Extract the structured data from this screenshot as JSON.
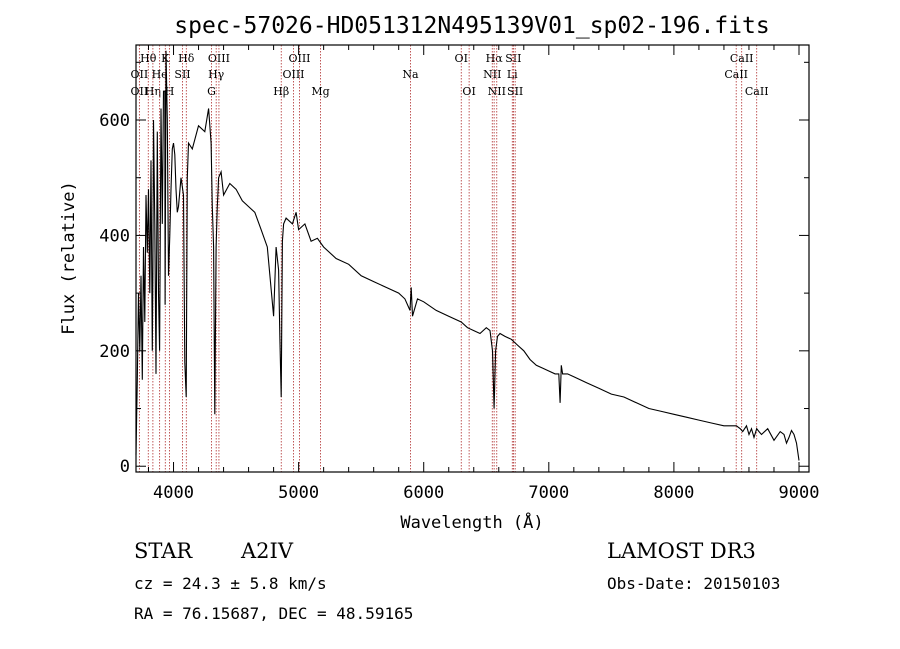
{
  "chart_data": {
    "type": "line",
    "title": "spec-57026-HD051312N495139V01_sp02-196.fits",
    "xlabel": "Wavelength (Å)",
    "ylabel": "Flux (relative)",
    "xlim": [
      3700,
      9080
    ],
    "ylim": [
      -10,
      730
    ],
    "x_ticks": [
      "4000",
      "5000",
      "6000",
      "7000",
      "8000",
      "9000"
    ],
    "y_ticks": [
      "0",
      "200",
      "400",
      "600"
    ],
    "grid": false,
    "series": [
      {
        "x": [
          3700,
          3710,
          3720,
          3730,
          3740,
          3750,
          3760,
          3770,
          3780,
          3790,
          3800,
          3810,
          3820,
          3830,
          3835,
          3840,
          3850,
          3860,
          3870,
          3880,
          3889,
          3900,
          3910,
          3920,
          3930,
          3933,
          3940,
          3950,
          3960,
          3970,
          3980,
          3990,
          4000,
          4010,
          4020,
          4030,
          4040,
          4060,
          4080,
          4090,
          4101,
          4110,
          4120,
          4150,
          4200,
          4250,
          4280,
          4300,
          4310,
          4320,
          4330,
          4340,
          4350,
          4360,
          4380,
          4400,
          4450,
          4500,
          4550,
          4600,
          4650,
          4700,
          4750,
          4800,
          4820,
          4840,
          4850,
          4861,
          4870,
          4880,
          4900,
          4950,
          4980,
          5000,
          5050,
          5100,
          5150,
          5200,
          5300,
          5400,
          5500,
          5600,
          5700,
          5800,
          5850,
          5890,
          5900,
          5910,
          5950,
          6000,
          6100,
          6200,
          6300,
          6350,
          6400,
          6450,
          6500,
          6530,
          6550,
          6563,
          6575,
          6590,
          6610,
          6650,
          6700,
          6750,
          6800,
          6850,
          6900,
          6950,
          7000,
          7050,
          7080,
          7090,
          7100,
          7110,
          7150,
          7200,
          7300,
          7400,
          7500,
          7600,
          7700,
          7800,
          7900,
          8000,
          8100,
          8200,
          8300,
          8400,
          8450,
          8500,
          8530,
          8550,
          8580,
          8600,
          8620,
          8640,
          8662,
          8680,
          8700,
          8750,
          8800,
          8850,
          8880,
          8900,
          8920,
          8940,
          8960,
          8980,
          9000
        ],
        "values": [
          20,
          150,
          300,
          200,
          330,
          150,
          380,
          250,
          470,
          370,
          480,
          300,
          530,
          200,
          340,
          600,
          420,
          160,
          580,
          300,
          200,
          620,
          420,
          650,
          650,
          280,
          720,
          600,
          330,
          400,
          480,
          550,
          560,
          540,
          480,
          440,
          450,
          500,
          470,
          180,
          120,
          500,
          560,
          550,
          590,
          580,
          620,
          560,
          450,
          380,
          90,
          380,
          450,
          500,
          510,
          470,
          490,
          480,
          460,
          450,
          440,
          410,
          380,
          260,
          380,
          340,
          220,
          120,
          390,
          420,
          430,
          420,
          440,
          410,
          420,
          390,
          395,
          380,
          360,
          350,
          330,
          320,
          310,
          300,
          290,
          270,
          310,
          260,
          290,
          285,
          270,
          260,
          250,
          240,
          235,
          230,
          240,
          235,
          200,
          100,
          200,
          225,
          230,
          225,
          220,
          210,
          200,
          185,
          175,
          170,
          165,
          160,
          160,
          110,
          175,
          160,
          160,
          155,
          145,
          135,
          125,
          120,
          110,
          100,
          95,
          90,
          85,
          80,
          75,
          70,
          70,
          70,
          65,
          60,
          70,
          55,
          65,
          50,
          65,
          60,
          55,
          65,
          45,
          60,
          55,
          40,
          50,
          62,
          55,
          40,
          10
        ]
      }
    ],
    "spectral_lines": [
      {
        "label": "Hθ",
        "x": 3798,
        "row": 1
      },
      {
        "label": "OII",
        "x": 3727,
        "row": 2
      },
      {
        "label": "OII",
        "x": 3727,
        "row": 3
      },
      {
        "label": "Hη",
        "x": 3835,
        "row": 3
      },
      {
        "label": "He",
        "x": 3889,
        "row": 2
      },
      {
        "label": "K",
        "x": 3934,
        "row": 1
      },
      {
        "label": "H",
        "x": 3968,
        "row": 3
      },
      {
        "label": "SII",
        "x": 4072,
        "row": 2
      },
      {
        "label": "Hδ",
        "x": 4102,
        "row": 1
      },
      {
        "label": "OIII",
        "x": 4363,
        "row": 1
      },
      {
        "label": "Hγ",
        "x": 4341,
        "row": 2
      },
      {
        "label": "G",
        "x": 4304,
        "row": 3
      },
      {
        "label": "Hβ",
        "x": 4861,
        "row": 3
      },
      {
        "label": "OIII",
        "x": 5007,
        "row": 1
      },
      {
        "label": "OIII",
        "x": 4959,
        "row": 2
      },
      {
        "label": "Mg",
        "x": 5175,
        "row": 3
      },
      {
        "label": "Na",
        "x": 5894,
        "row": 2
      },
      {
        "label": "OI",
        "x": 6300,
        "row": 1
      },
      {
        "label": "OI",
        "x": 6363,
        "row": 3
      },
      {
        "label": "Hα",
        "x": 6563,
        "row": 1
      },
      {
        "label": "NII",
        "x": 6548,
        "row": 2
      },
      {
        "label": "NII",
        "x": 6584,
        "row": 3
      },
      {
        "label": "SII",
        "x": 6717,
        "row": 1
      },
      {
        "label": "Li",
        "x": 6708,
        "row": 2
      },
      {
        "label": "SII",
        "x": 6731,
        "row": 3
      },
      {
        "label": "CaII",
        "x": 8542,
        "row": 1
      },
      {
        "label": "CaII",
        "x": 8498,
        "row": 2
      },
      {
        "label": "CaII",
        "x": 8662,
        "row": 3
      }
    ]
  },
  "info": {
    "object_type": "STAR",
    "subclass": "A2IV",
    "survey": "LAMOST DR3",
    "cz": "cz = 24.3 ± 5.8 km/s",
    "obs_date": "Obs-Date: 20150103",
    "coords": "RA =  76.15687, DEC =  48.59165"
  },
  "colors": {
    "spectrum": "#000000",
    "line_markers": "#b03030"
  }
}
